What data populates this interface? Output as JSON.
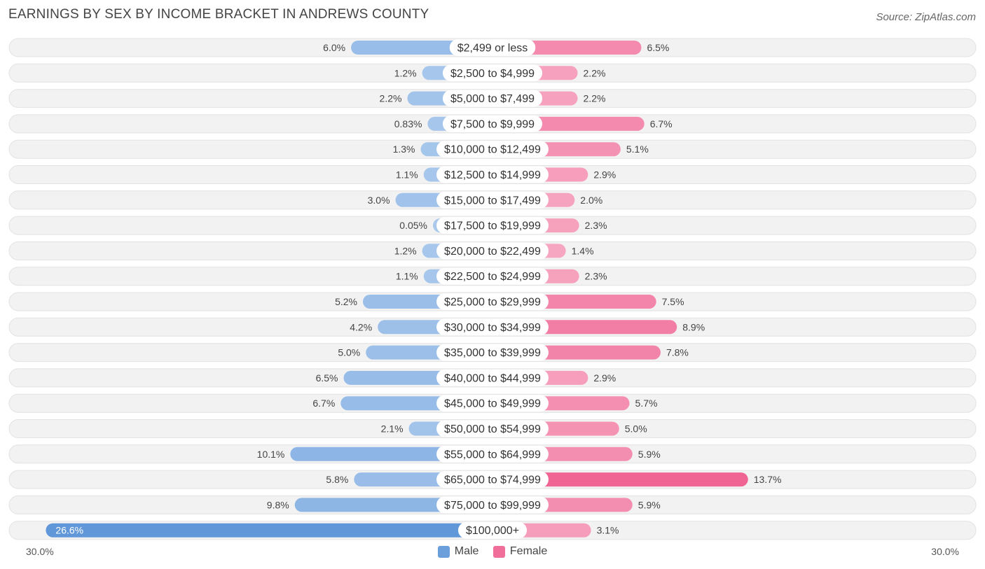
{
  "title": "EARNINGS BY SEX BY INCOME BRACKET IN ANDREWS COUNTY",
  "source": "Source: ZipAtlas.com",
  "colors": {
    "male": "#8fb7e4",
    "female": "#f48fb1",
    "track": "#f2f2f2"
  },
  "legend": {
    "male": "Male",
    "female": "Female"
  },
  "axis": {
    "left": "30.0%",
    "right": "30.0%"
  },
  "chart_data": {
    "type": "bar",
    "orientation": "horizontal-diverging",
    "xlim": [
      -30,
      30
    ],
    "categories": [
      "$2,499 or less",
      "$2,500 to $4,999",
      "$5,000 to $7,499",
      "$7,500 to $9,999",
      "$10,000 to $12,499",
      "$12,500 to $14,999",
      "$15,000 to $17,499",
      "$17,500 to $19,999",
      "$20,000 to $22,499",
      "$22,500 to $24,999",
      "$25,000 to $29,999",
      "$30,000 to $34,999",
      "$35,000 to $39,999",
      "$40,000 to $44,999",
      "$45,000 to $49,999",
      "$50,000 to $54,999",
      "$55,000 to $64,999",
      "$65,000 to $74,999",
      "$75,000 to $99,999",
      "$100,000+"
    ],
    "series": [
      {
        "name": "Male",
        "values": [
          6.0,
          1.2,
          2.2,
          0.83,
          1.3,
          1.1,
          3.0,
          0.05,
          1.2,
          1.1,
          5.2,
          4.2,
          5.0,
          6.5,
          6.7,
          2.1,
          10.1,
          5.8,
          9.8,
          26.6
        ],
        "labels": [
          "6.0%",
          "1.2%",
          "2.2%",
          "0.83%",
          "1.3%",
          "1.1%",
          "3.0%",
          "0.05%",
          "1.2%",
          "1.1%",
          "5.2%",
          "4.2%",
          "5.0%",
          "6.5%",
          "6.7%",
          "2.1%",
          "10.1%",
          "5.8%",
          "9.8%",
          "26.6%"
        ]
      },
      {
        "name": "Female",
        "values": [
          6.5,
          2.2,
          2.2,
          6.7,
          5.1,
          2.9,
          2.0,
          2.3,
          1.4,
          2.3,
          7.5,
          8.9,
          7.8,
          2.9,
          5.7,
          5.0,
          5.9,
          13.7,
          5.9,
          3.1
        ],
        "labels": [
          "6.5%",
          "2.2%",
          "2.2%",
          "6.7%",
          "5.1%",
          "2.9%",
          "2.0%",
          "2.3%",
          "1.4%",
          "2.3%",
          "7.5%",
          "8.9%",
          "7.8%",
          "2.9%",
          "5.7%",
          "5.0%",
          "5.9%",
          "13.7%",
          "5.9%",
          "3.1%"
        ]
      }
    ]
  }
}
